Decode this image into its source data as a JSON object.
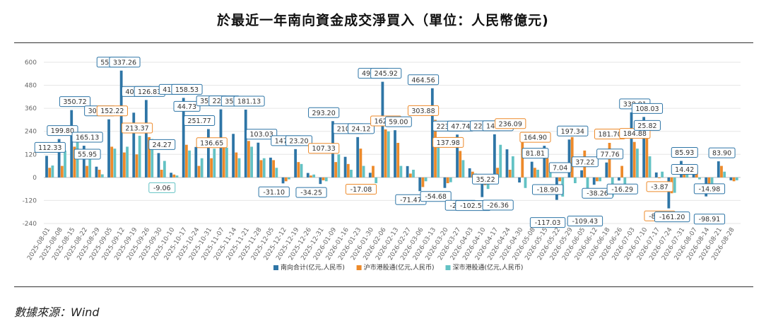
{
  "title": "於最近一年南向資金成交淨買入（單位：人民幣億元)",
  "source": "數據來源：Wind",
  "chart_data": {
    "type": "bar",
    "ylim": [
      -240,
      600
    ],
    "yticks": [
      600,
      480,
      360,
      240,
      120,
      0,
      -120,
      -240
    ],
    "grid": "horizontal",
    "legend_position": "bottom",
    "categories": [
      "2025-08-01",
      "2025-08-08",
      "2025-08-15",
      "2025-08-22",
      "2025-08-29",
      "2025-09-05",
      "2025-09-12",
      "2025-09-19",
      "2025-09-26",
      "2025-09-30",
      "2025-10-10",
      "2025-10-17",
      "2025-10-24",
      "2025-10-31",
      "2025-11-07",
      "2025-11-14",
      "2025-11-21",
      "2025-11-28",
      "2025-12-05",
      "2025-12-12",
      "2025-12-19",
      "2025-12-26",
      "2025-12-31",
      "2026-01-09",
      "2026-01-16",
      "2026-01-23",
      "2026-01-30",
      "2026-02-06",
      "2026-02-13",
      "2026-02-27",
      "2026-03-06",
      "2026-03-13",
      "2026-03-20",
      "2026-03-27",
      "2026-04-03",
      "2026-04-10",
      "2026-04-17",
      "2026-04-24",
      "2026-04-30",
      "2026-05-08",
      "2026-05-15",
      "2026-05-22",
      "2026-05-29",
      "2026-06-05",
      "2026-06-12",
      "2026-06-18",
      "2026-06-26",
      "2026-07-03",
      "2026-07-10",
      "2026-07-17",
      "2026-07-24",
      "2026-07-31",
      "2026-08-07",
      "2026-08-14",
      "2026-08-21",
      "2026-08-28"
    ],
    "series": [
      {
        "name": "南向合计(亿元,人民币)",
        "color": "#2E75A6",
        "values": [
          112.33,
          199.8,
          350.72,
          165.13,
          55.95,
          302.69,
          556.44,
          337.26,
          403.3,
          126.83,
          24.27,
          414.24,
          158.53,
          251.77,
          354.69,
          226.88,
          353.06,
          181.13,
          103.03,
          -31.1,
          147.37,
          23.2,
          -34.25,
          293.2,
          107.33,
          210.06,
          24.12,
          498.29,
          245.92,
          59.0,
          -71.47,
          464.56,
          -54.68,
          223.16,
          47.74,
          -102.5,
          224.6,
          146.44,
          -26.36,
          81.81,
          164.9,
          -117.03,
          197.34,
          37.22,
          -38.26,
          77.76,
          -16.29,
          338.91,
          315.0,
          25.82,
          -161.2,
          85.93,
          14.42,
          -98.91,
          83.9,
          -14.98
        ]
      },
      {
        "name": "沪市港股通(亿元,人民币)",
        "color": "#ED8A2A",
        "values": [
          50,
          60,
          160,
          60,
          40,
          160,
          130,
          120,
          210,
          40,
          15,
          170,
          60,
          100,
          200,
          130,
          190,
          90,
          90,
          -20,
          80,
          10,
          -15,
          80,
          70,
          150,
          60,
          250,
          180,
          20,
          -50,
          300,
          -30,
          138.0,
          30,
          -40,
          50,
          40,
          236.09,
          50,
          100,
          -20,
          210,
          140,
          -20,
          180,
          60,
          184.88,
          210,
          -3.87,
          -82.63,
          35,
          30,
          -50,
          60,
          -20
        ]
      },
      {
        "name": "深市港股通(亿元,人民币)",
        "color": "#63C2C4",
        "values": [
          62,
          140,
          190,
          110,
          16,
          150,
          160,
          217,
          200,
          86,
          10,
          140,
          100,
          150,
          155,
          100,
          160,
          100,
          50,
          -10,
          70,
          15,
          -20,
          120,
          40,
          60,
          -30,
          240,
          60,
          40,
          -20,
          160,
          -25,
          90,
          20,
          -60,
          170,
          110,
          -55,
          40,
          60,
          -100,
          -30,
          -100,
          -20,
          -100,
          -70,
          150,
          110,
          30,
          -80,
          50,
          -10,
          -50,
          30,
          -15
        ]
      }
    ],
    "labels": [
      {
        "cat": "2025-08-01",
        "s": 0,
        "text": "112.33"
      },
      {
        "cat": "2025-08-08",
        "s": 0,
        "text": "199.80"
      },
      {
        "cat": "2025-08-15",
        "s": 0,
        "text": "350.72"
      },
      {
        "cat": "2025-08-22",
        "s": 0,
        "text": "165.13"
      },
      {
        "cat": "2025-08-22",
        "s": 0,
        "text": "55.95",
        "alt": true
      },
      {
        "cat": "2025-08-29",
        "s": 0,
        "text": "302.69"
      },
      {
        "cat": "2025-09-05",
        "s": 0,
        "text": "152.22",
        "series": 1
      },
      {
        "cat": "2025-09-05",
        "s": 0,
        "text": "556.44"
      },
      {
        "cat": "2025-09-12",
        "s": 0,
        "text": "337.26"
      },
      {
        "cat": "2025-09-19",
        "s": 0,
        "text": "403.30"
      },
      {
        "cat": "2025-09-19",
        "s": 1,
        "text": "213.37"
      },
      {
        "cat": "2025-09-26",
        "s": 0,
        "text": "126.83"
      },
      {
        "cat": "2025-09-30",
        "s": 0,
        "text": "24.27"
      },
      {
        "cat": "2025-09-30",
        "s": 2,
        "text": "-9.06"
      },
      {
        "cat": "2025-10-10",
        "s": 0,
        "text": "414.24"
      },
      {
        "cat": "2025-10-17",
        "s": 0,
        "text": "158.53"
      },
      {
        "cat": "2025-10-17",
        "s": 0,
        "text": "44.73",
        "alt": true
      },
      {
        "cat": "2025-10-24",
        "s": 0,
        "text": "251.77"
      },
      {
        "cat": "2025-10-31",
        "s": 0,
        "text": "354.69"
      },
      {
        "cat": "2025-10-31",
        "s": 1,
        "text": "136.65"
      },
      {
        "cat": "2025-11-07",
        "s": 0,
        "text": "226.88"
      },
      {
        "cat": "2025-11-14",
        "s": 0,
        "text": "353.06"
      },
      {
        "cat": "2025-11-21",
        "s": 0,
        "text": "181.13"
      },
      {
        "cat": "2025-11-28",
        "s": 0,
        "text": "103.03"
      },
      {
        "cat": "2025-12-05",
        "s": 0,
        "text": "-31.10"
      },
      {
        "cat": "2025-12-12",
        "s": 0,
        "text": "147.37"
      },
      {
        "cat": "2025-12-19",
        "s": 0,
        "text": "23.20"
      },
      {
        "cat": "2025-12-26",
        "s": 0,
        "text": "-34.25"
      },
      {
        "cat": "2025-12-31",
        "s": 0,
        "text": "293.20"
      },
      {
        "cat": "2025-12-31",
        "s": 1,
        "text": "107.33"
      },
      {
        "cat": "2026-01-16",
        "s": 0,
        "text": "210.06"
      },
      {
        "cat": "2026-01-23",
        "s": 0,
        "text": "24.12"
      },
      {
        "cat": "2026-01-23",
        "s": 1,
        "text": "-17.08"
      },
      {
        "cat": "2026-01-30",
        "s": 0,
        "text": "498.29"
      },
      {
        "cat": "2026-02-06",
        "s": 0,
        "text": "245.92"
      },
      {
        "cat": "2026-02-06",
        "s": 1,
        "text": "162.86"
      },
      {
        "cat": "2026-02-13",
        "s": 0,
        "text": "59.00"
      },
      {
        "cat": "2026-02-27",
        "s": 0,
        "text": "-71.47"
      },
      {
        "cat": "2026-03-06",
        "s": 0,
        "text": "464.56"
      },
      {
        "cat": "2026-03-06",
        "s": 1,
        "text": "303.88"
      },
      {
        "cat": "2026-03-13",
        "s": 0,
        "text": "-54.68"
      },
      {
        "cat": "2026-03-20",
        "s": 0,
        "text": "223.16"
      },
      {
        "cat": "2026-03-20",
        "s": 1,
        "text": "137.98"
      },
      {
        "cat": "2026-03-27",
        "s": 0,
        "text": "47.74"
      },
      {
        "cat": "2026-03-27",
        "s": 0,
        "text": "-27.35",
        "alt": true
      },
      {
        "cat": "2026-04-03",
        "s": 0,
        "text": "-102.50"
      },
      {
        "cat": "2026-04-10",
        "s": 0,
        "text": "224.60"
      },
      {
        "cat": "2026-04-10",
        "s": 0,
        "text": "35.22",
        "alt": true
      },
      {
        "cat": "2026-04-17",
        "s": 0,
        "text": "146.44"
      },
      {
        "cat": "2026-04-17",
        "s": 0,
        "text": "-26.36",
        "alt": true
      },
      {
        "cat": "2026-04-24",
        "s": 1,
        "text": "236.09"
      },
      {
        "cat": "2026-05-08",
        "s": 0,
        "text": "81.81"
      },
      {
        "cat": "2026-05-08",
        "s": 0,
        "text": "164.90",
        "series": 1
      },
      {
        "cat": "2026-05-15",
        "s": 0,
        "text": "-18.90"
      },
      {
        "cat": "2026-05-15",
        "s": 0,
        "text": "-117.03",
        "alt": true
      },
      {
        "cat": "2026-05-22",
        "s": 0,
        "text": "7.04"
      },
      {
        "cat": "2026-05-29",
        "s": 0,
        "text": "197.34"
      },
      {
        "cat": "2026-06-05",
        "s": 0,
        "text": "37.22"
      },
      {
        "cat": "2026-06-05",
        "s": 0,
        "text": "-109.43",
        "alt": true
      },
      {
        "cat": "2026-06-12",
        "s": 0,
        "text": "-38.26"
      },
      {
        "cat": "2026-06-18",
        "s": 0,
        "text": "77.76"
      },
      {
        "cat": "2026-06-18",
        "s": 1,
        "text": "181.70"
      },
      {
        "cat": "2026-06-26",
        "s": 0,
        "text": "-16.29"
      },
      {
        "cat": "2026-07-03",
        "s": 0,
        "text": "338.91"
      },
      {
        "cat": "2026-07-03",
        "s": 1,
        "text": "184.88"
      },
      {
        "cat": "2026-07-10",
        "s": 0,
        "text": "108.03"
      },
      {
        "cat": "2026-07-10",
        "s": 0,
        "text": "25.82",
        "alt": true
      },
      {
        "cat": "2026-07-17",
        "s": 1,
        "text": "-3.87"
      },
      {
        "cat": "2026-07-17",
        "s": 1,
        "text": "-82.63",
        "alt": true
      },
      {
        "cat": "2026-07-24",
        "s": 0,
        "text": "-161.20"
      },
      {
        "cat": "2026-07-31",
        "s": 0,
        "text": "85.93"
      },
      {
        "cat": "2026-07-31",
        "s": 0,
        "text": "14.42",
        "alt": true
      },
      {
        "cat": "2026-08-14",
        "s": 0,
        "text": "-14.98"
      },
      {
        "cat": "2026-08-14",
        "s": 0,
        "text": "-98.91",
        "alt": true
      },
      {
        "cat": "2026-08-21",
        "s": 0,
        "text": "83.90"
      }
    ]
  }
}
